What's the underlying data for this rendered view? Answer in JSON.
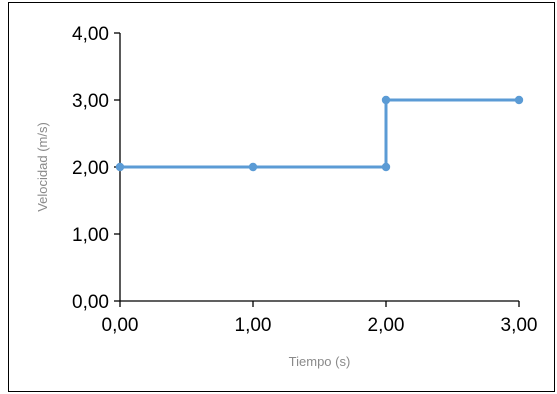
{
  "chart_data": {
    "type": "line",
    "title": "",
    "xlabel": "Tiempo (s)",
    "ylabel": "Velocidad (m/s)",
    "xlim": [
      0,
      3
    ],
    "ylim": [
      0,
      4
    ],
    "x_ticks": [
      "0,00",
      "1,00",
      "2,00",
      "3,00"
    ],
    "y_ticks": [
      "0,00",
      "1,00",
      "2,00",
      "3,00",
      "4,00"
    ],
    "grid": false,
    "legend": "none",
    "series": [
      {
        "color": "#5b9bd5",
        "points": [
          {
            "x": 0,
            "y": 2
          },
          {
            "x": 1,
            "y": 2
          },
          {
            "x": 2,
            "y": 2
          },
          {
            "x": 2,
            "y": 3
          },
          {
            "x": 3,
            "y": 3
          }
        ]
      }
    ]
  }
}
